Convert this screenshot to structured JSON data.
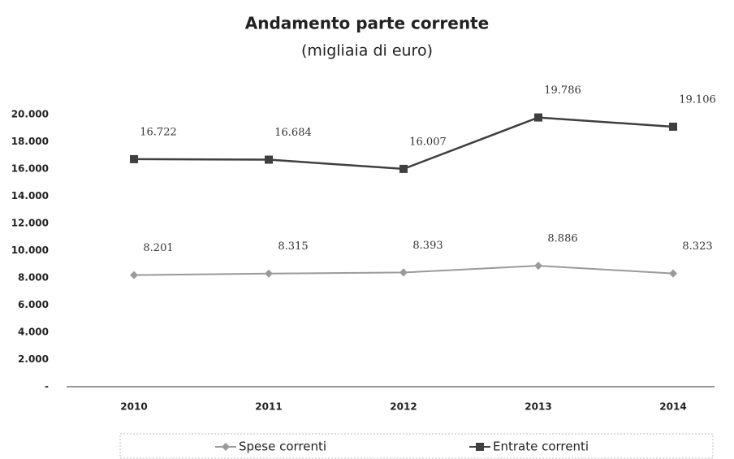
{
  "chart_data": {
    "type": "line",
    "title": "Andamento parte corrente",
    "subtitle": "(migliaia di euro)",
    "categories": [
      "2010",
      "2011",
      "2012",
      "2013",
      "2014"
    ],
    "series": [
      {
        "name": "Spese correnti",
        "color": "#9a9a9a",
        "marker": "diamond",
        "values": [
          8201,
          8315,
          8393,
          8886,
          8323
        ],
        "value_labels": [
          "8.201",
          "8.315",
          "8.393",
          "8.886",
          "8.323"
        ]
      },
      {
        "name": "Entrate correnti",
        "color": "#3f3f3f",
        "marker": "square",
        "values": [
          16722,
          16684,
          16007,
          19786,
          19106
        ],
        "value_labels": [
          "16.722",
          "16.684",
          "16.007",
          "19.786",
          "19.106"
        ]
      }
    ],
    "ylim": [
      0,
      20000
    ],
    "yticks": [
      {
        "value": 0,
        "label": "-"
      },
      {
        "value": 2000,
        "label": "2.000"
      },
      {
        "value": 4000,
        "label": "4.000"
      },
      {
        "value": 6000,
        "label": "6.000"
      },
      {
        "value": 8000,
        "label": "8.000"
      },
      {
        "value": 10000,
        "label": "10.000"
      },
      {
        "value": 12000,
        "label": "12.000"
      },
      {
        "value": 14000,
        "label": "14.000"
      },
      {
        "value": 16000,
        "label": "16.000"
      },
      {
        "value": 18000,
        "label": "18.000"
      },
      {
        "value": 20000,
        "label": "20.000"
      }
    ],
    "grid": false,
    "legend": "bottom"
  }
}
